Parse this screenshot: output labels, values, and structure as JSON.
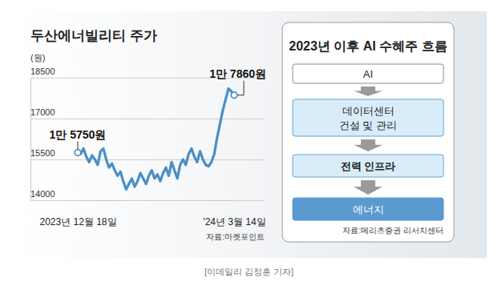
{
  "chart_data": {
    "type": "line",
    "title": "두산에너빌리티 주가",
    "ylabel": "(원)",
    "categories": [
      "2023년 12월 18일",
      null,
      null,
      null,
      null,
      null,
      null,
      null,
      null,
      null,
      null,
      null,
      null,
      null,
      null,
      null,
      null,
      null,
      null,
      null,
      null,
      null,
      null,
      null,
      null,
      null,
      null,
      null,
      null,
      null,
      null,
      null,
      null,
      null,
      null,
      null,
      null,
      null,
      null,
      null,
      null,
      null,
      null,
      null,
      null,
      null,
      null,
      null,
      null,
      null,
      null,
      null,
      null,
      null,
      null,
      "'24년 3월 14일"
    ],
    "values": [
      15750,
      15700,
      15900,
      15600,
      15400,
      15650,
      15500,
      15300,
      15800,
      15900,
      15500,
      15200,
      15350,
      15100,
      14900,
      15050,
      14700,
      14400,
      14600,
      14800,
      14500,
      14700,
      15000,
      14800,
      14600,
      14900,
      15100,
      14800,
      14950,
      14700,
      15000,
      15200,
      14900,
      15400,
      15100,
      14800,
      15300,
      15500,
      15300,
      15700,
      15900,
      15600,
      15400,
      15800,
      15500,
      15300,
      15250,
      15400,
      15700,
      16300,
      16800,
      17300,
      17700,
      18100,
      18000,
      17860
    ],
    "color": "#4a8fc7",
    "ylim": [
      14000,
      18500
    ],
    "yticks": [
      14000,
      15500,
      17000,
      18500
    ],
    "grid": true,
    "annotations": [
      {
        "text": "1만 5750원",
        "value": 15750
      },
      {
        "text": "1만 7860원",
        "value": 17860
      }
    ],
    "source": "자료:마켓포인트"
  },
  "diagram": {
    "title": "2023년 이후 AI 수혜주 흐름",
    "nodes": [
      {
        "label": "AI"
      },
      {
        "label": "데이터센터",
        "sublabel": "건설 및 관리"
      },
      {
        "label": "전력 인프라"
      },
      {
        "label": "에너지"
      }
    ],
    "source": "자료:메리츠증권 리서치센터"
  },
  "caption": "[이데일리 김정훈 기자]"
}
